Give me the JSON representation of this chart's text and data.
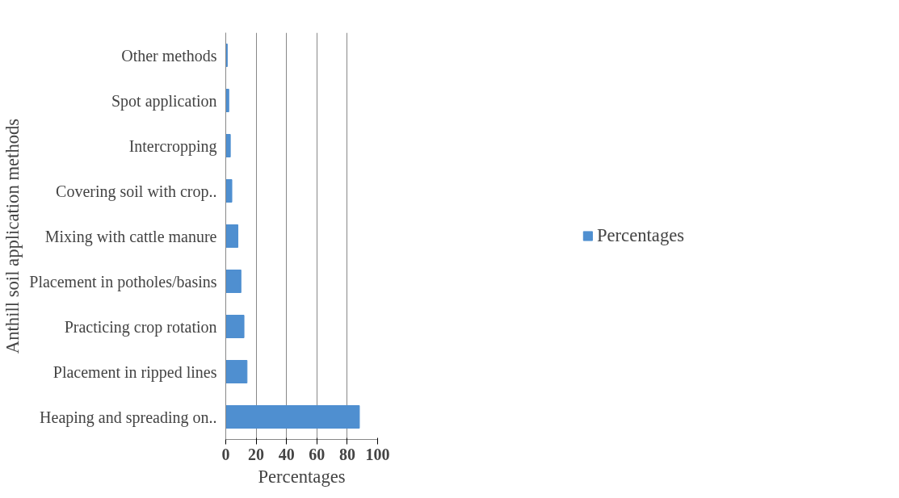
{
  "chart_data": {
    "type": "bar",
    "orientation": "horizontal",
    "xlabel": "Percentages",
    "ylabel": "Anthill soil application methods",
    "categories": [
      "Other methods",
      "Spot application",
      "Intercropping",
      "Covering soil with crop..",
      "Mixing with cattle manure",
      "Placement in potholes/basins",
      "Practicing crop rotation",
      "Placement in ripped lines",
      "Heaping and spreading on.."
    ],
    "series": [
      {
        "name": "Percentages",
        "color": "#4f8fd0",
        "values": [
          1,
          2,
          3,
          4,
          8,
          10,
          12,
          14,
          88
        ]
      }
    ],
    "xlim": [
      0,
      100
    ],
    "xticks": [
      0,
      20,
      40,
      60,
      80,
      100
    ],
    "grid": "x",
    "legend": "right"
  }
}
